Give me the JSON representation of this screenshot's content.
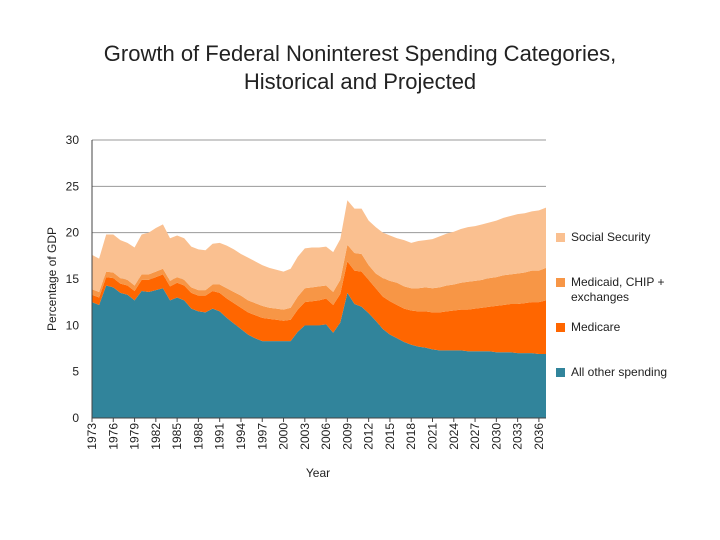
{
  "title_line1": "Growth of Federal Noninterest Spending Categories,",
  "title_line2": "Historical and Projected",
  "chart_data": {
    "type": "area",
    "stacked": true,
    "xlabel": "Year",
    "ylabel": "Percentage of GDP",
    "xlim": [
      1973,
      2037
    ],
    "ylim": [
      0,
      30
    ],
    "yticks": [
      0,
      5,
      10,
      15,
      20,
      25,
      30
    ],
    "xticks": [
      "1973",
      "1976",
      "1979",
      "1982",
      "1985",
      "1988",
      "1991",
      "1994",
      "1997",
      "2000",
      "2003",
      "2006",
      "2009",
      "2012",
      "2015",
      "2018",
      "2021",
      "2024",
      "2027",
      "2030",
      "2033",
      "2036"
    ],
    "grid": "horizontal",
    "legend_position": "right",
    "x": [
      1973,
      1974,
      1975,
      1976,
      1977,
      1978,
      1979,
      1980,
      1981,
      1982,
      1983,
      1984,
      1985,
      1986,
      1987,
      1988,
      1989,
      1990,
      1991,
      1992,
      1993,
      1994,
      1995,
      1996,
      1997,
      1998,
      1999,
      2000,
      2001,
      2002,
      2003,
      2004,
      2005,
      2006,
      2007,
      2008,
      2009,
      2010,
      2011,
      2012,
      2013,
      2014,
      2015,
      2016,
      2017,
      2018,
      2019,
      2020,
      2021,
      2022,
      2023,
      2024,
      2025,
      2026,
      2027,
      2028,
      2029,
      2030,
      2031,
      2032,
      2033,
      2034,
      2035,
      2036,
      2037
    ],
    "series": [
      {
        "name": "All other spending",
        "color": "#31849b",
        "values": [
          12.5,
          12.2,
          14.3,
          14.1,
          13.5,
          13.3,
          12.7,
          13.7,
          13.6,
          13.8,
          14.0,
          12.7,
          13.0,
          12.7,
          11.8,
          11.5,
          11.4,
          11.8,
          11.5,
          10.8,
          10.2,
          9.6,
          9.0,
          8.6,
          8.3,
          8.3,
          8.3,
          8.3,
          8.3,
          9.3,
          10.0,
          10.0,
          10.0,
          10.1,
          9.2,
          10.3,
          13.5,
          12.3,
          12.0,
          11.3,
          10.5,
          9.6,
          9.0,
          8.6,
          8.2,
          7.9,
          7.7,
          7.6,
          7.4,
          7.3,
          7.3,
          7.3,
          7.3,
          7.2,
          7.2,
          7.2,
          7.2,
          7.1,
          7.1,
          7.1,
          7.0,
          7.0,
          7.0,
          6.9,
          6.9
        ]
      },
      {
        "name": "Medicare",
        "color": "#ff6600",
        "values": [
          0.8,
          0.8,
          0.9,
          1.0,
          1.0,
          1.0,
          1.0,
          1.2,
          1.3,
          1.4,
          1.5,
          1.5,
          1.6,
          1.6,
          1.7,
          1.7,
          1.8,
          1.9,
          2.0,
          2.1,
          2.2,
          2.3,
          2.4,
          2.5,
          2.5,
          2.4,
          2.3,
          2.2,
          2.3,
          2.4,
          2.5,
          2.6,
          2.7,
          2.8,
          3.0,
          3.1,
          3.4,
          3.6,
          3.8,
          3.6,
          3.5,
          3.5,
          3.6,
          3.6,
          3.6,
          3.7,
          3.8,
          3.9,
          4.0,
          4.1,
          4.2,
          4.3,
          4.4,
          4.5,
          4.6,
          4.7,
          4.8,
          5.0,
          5.1,
          5.2,
          5.3,
          5.4,
          5.5,
          5.6,
          5.8
        ]
      },
      {
        "name": "Medicaid, CHIP + exchanges",
        "color": "#f79646",
        "values": [
          0.6,
          0.6,
          0.6,
          0.6,
          0.6,
          0.6,
          0.6,
          0.6,
          0.6,
          0.6,
          0.6,
          0.6,
          0.6,
          0.6,
          0.6,
          0.6,
          0.6,
          0.7,
          0.9,
          1.1,
          1.2,
          1.3,
          1.3,
          1.3,
          1.3,
          1.2,
          1.2,
          1.2,
          1.3,
          1.4,
          1.5,
          1.5,
          1.5,
          1.4,
          1.4,
          1.5,
          1.8,
          1.9,
          1.9,
          1.6,
          1.6,
          2.0,
          2.2,
          2.4,
          2.4,
          2.4,
          2.5,
          2.6,
          2.6,
          2.7,
          2.8,
          2.8,
          2.9,
          3.0,
          3.0,
          3.0,
          3.1,
          3.1,
          3.2,
          3.2,
          3.3,
          3.3,
          3.4,
          3.4,
          3.5
        ]
      },
      {
        "name": "Social Security",
        "color": "#fac090",
        "values": [
          3.7,
          3.6,
          4.0,
          4.1,
          4.1,
          4.0,
          4.1,
          4.3,
          4.5,
          4.7,
          4.8,
          4.6,
          4.5,
          4.5,
          4.4,
          4.4,
          4.3,
          4.4,
          4.5,
          4.6,
          4.6,
          4.5,
          4.6,
          4.5,
          4.4,
          4.3,
          4.2,
          4.1,
          4.2,
          4.3,
          4.3,
          4.3,
          4.2,
          4.2,
          4.3,
          4.4,
          4.8,
          4.8,
          4.9,
          4.8,
          5.0,
          4.9,
          4.9,
          4.8,
          5.0,
          4.9,
          5.1,
          5.1,
          5.3,
          5.5,
          5.6,
          5.7,
          5.8,
          5.9,
          5.9,
          6.0,
          6.0,
          6.1,
          6.2,
          6.3,
          6.4,
          6.4,
          6.4,
          6.5,
          6.5
        ]
      }
    ]
  }
}
